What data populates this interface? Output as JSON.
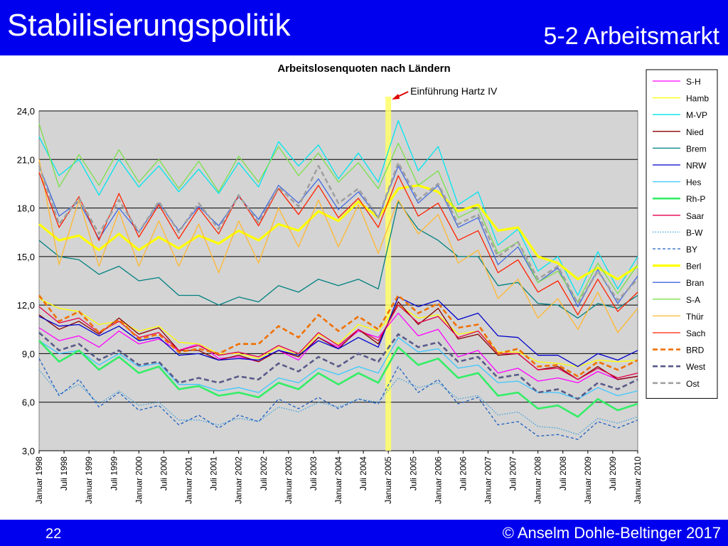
{
  "slide": {
    "title": "Stabilisierungspolitik",
    "section": "5-2 Arbeitsmarkt",
    "page_number": "22",
    "copyright": "© Anselm Dohle-Beltinger 2017",
    "header_color": "#0000ee"
  },
  "chart_data": {
    "type": "line",
    "title": "Arbeitslosenquoten nach Ländern",
    "annotation": "Einführung Hartz IV",
    "annotation_x": "Januar 2005",
    "ylim": [
      3,
      24
    ],
    "yticks": [
      "24,0",
      "21,0",
      "18,0",
      "15,0",
      "12,0",
      "9,0",
      "6,0",
      "3,0"
    ],
    "xticks": [
      "Januar 1998",
      "Juli 1998",
      "Januar 1999",
      "Juli 1999",
      "Januar 2000",
      "Juli 2000",
      "Januar 2001",
      "Juli 2001",
      "Januar 2002",
      "Juli 2002",
      "Januar 2003",
      "Juli 2003",
      "Januar 2004",
      "Juli 2004",
      "Januar 2005",
      "Juli 2005",
      "Januar 2006",
      "Juli 2006",
      "Januar 2007",
      "Juli 2007",
      "Januar 2008",
      "Juli 2008",
      "Januar 2009",
      "Juli 2009",
      "Januar 2010"
    ],
    "grid": true,
    "legend_position": "right",
    "background_color": "#d4d4d4",
    "series": [
      {
        "name": "S-H",
        "color": "#ff00ff",
        "style": "solid",
        "width": 1.3,
        "values": [
          10.6,
          9.8,
          10.1,
          9.4,
          10.4,
          9.6,
          9.9,
          9.2,
          9.6,
          8.7,
          8.8,
          8.5,
          9.2,
          8.6,
          10.0,
          9.4,
          10.4,
          10.0,
          11.5,
          10.1,
          10.5,
          8.8,
          9.2,
          7.8,
          8.1,
          7.3,
          7.5,
          7.2,
          7.9,
          7.4,
          7.6
        ]
      },
      {
        "name": "Hamb",
        "color": "#ffff00",
        "style": "solid",
        "width": 1.3,
        "values": [
          12.4,
          11.8,
          11.6,
          10.8,
          11.0,
          10.4,
          10.7,
          9.7,
          9.6,
          9.0,
          9.0,
          8.7,
          9.4,
          8.9,
          10.2,
          9.6,
          10.8,
          10.4,
          12.0,
          11.2,
          11.4,
          10.2,
          10.4,
          9.1,
          9.1,
          8.5,
          8.4,
          8.2,
          8.6,
          8.5,
          8.6
        ]
      },
      {
        "name": "M-VP",
        "color": "#00e5ee",
        "style": "solid",
        "width": 1.3,
        "values": [
          22.4,
          20.0,
          21.0,
          18.8,
          21.0,
          19.3,
          20.6,
          19.0,
          20.4,
          18.9,
          20.8,
          19.3,
          22.1,
          20.6,
          21.9,
          19.8,
          21.4,
          19.6,
          23.4,
          20.3,
          21.8,
          18.2,
          19.0,
          15.7,
          16.7,
          14.1,
          15.0,
          12.6,
          15.3,
          13.0,
          15.0
        ]
      },
      {
        "name": "Nied",
        "color": "#8b0000",
        "style": "solid",
        "width": 1.3,
        "values": [
          11.4,
          10.5,
          11.0,
          10.2,
          11.2,
          10.2,
          10.6,
          9.2,
          9.2,
          8.6,
          8.9,
          8.5,
          9.2,
          8.8,
          10.0,
          9.3,
          10.5,
          9.6,
          12.2,
          10.8,
          11.8,
          9.9,
          10.2,
          8.9,
          9.0,
          8.0,
          8.2,
          7.4,
          8.2,
          7.4,
          7.6
        ]
      },
      {
        "name": "Brem",
        "color": "#008080",
        "style": "solid",
        "width": 1.3,
        "values": [
          16.0,
          15.0,
          14.8,
          13.9,
          14.4,
          13.5,
          13.7,
          12.6,
          12.6,
          12.0,
          12.5,
          12.2,
          13.2,
          12.8,
          13.6,
          13.2,
          13.6,
          13.0,
          18.4,
          16.7,
          16.0,
          15.0,
          15.0,
          13.2,
          13.4,
          12.1,
          12.0,
          11.2,
          12.1,
          11.8,
          12.6
        ]
      },
      {
        "name": "NRW",
        "color": "#0000cd",
        "style": "solid",
        "width": 1.3,
        "values": [
          11.3,
          10.7,
          10.8,
          10.1,
          10.7,
          9.8,
          10.0,
          8.9,
          9.0,
          8.6,
          8.7,
          8.6,
          9.2,
          8.9,
          9.8,
          9.3,
          10.0,
          9.4,
          12.5,
          11.9,
          12.3,
          11.1,
          11.5,
          10.1,
          10.0,
          8.9,
          8.9,
          8.2,
          9.0,
          8.6,
          9.2
        ]
      },
      {
        "name": "Hes",
        "color": "#3cc8ff",
        "style": "solid",
        "width": 1.3,
        "values": [
          9.8,
          9.0,
          9.2,
          8.3,
          9.0,
          8.2,
          8.4,
          7.1,
          7.1,
          6.7,
          6.9,
          6.6,
          7.5,
          7.2,
          8.1,
          7.7,
          8.2,
          7.8,
          10.0,
          9.1,
          9.3,
          8.1,
          8.3,
          7.2,
          7.3,
          6.6,
          6.6,
          6.2,
          6.9,
          6.4,
          6.7
        ]
      },
      {
        "name": "Rh-P",
        "color": "#33ee66",
        "style": "solid",
        "width": 2.6,
        "values": [
          9.8,
          8.5,
          9.2,
          8.0,
          8.8,
          7.8,
          8.2,
          6.8,
          7.0,
          6.4,
          6.6,
          6.3,
          7.2,
          6.8,
          7.8,
          7.1,
          7.8,
          7.2,
          9.4,
          8.3,
          8.7,
          7.5,
          7.8,
          6.4,
          6.6,
          5.6,
          5.8,
          5.1,
          6.2,
          5.5,
          5.9
        ]
      },
      {
        "name": "Saar",
        "color": "#e4004e",
        "style": "solid",
        "width": 1.3,
        "values": [
          11.9,
          10.9,
          11.2,
          10.3,
          11.0,
          10.0,
          10.3,
          9.2,
          9.5,
          8.9,
          9.1,
          8.8,
          9.5,
          9.0,
          10.3,
          9.5,
          10.5,
          9.8,
          12.0,
          10.9,
          11.3,
          10.0,
          10.4,
          9.0,
          9.0,
          8.0,
          8.1,
          7.4,
          8.1,
          7.5,
          7.8
        ]
      },
      {
        "name": "B-W",
        "color": "#3ca0dc",
        "style": "dotted",
        "width": 1.3,
        "values": [
          8.0,
          6.5,
          7.1,
          5.9,
          6.7,
          5.8,
          6.0,
          4.9,
          4.9,
          4.6,
          5.0,
          4.8,
          5.7,
          5.4,
          6.0,
          5.7,
          6.2,
          6.0,
          7.5,
          6.9,
          7.2,
          6.2,
          6.4,
          5.2,
          5.4,
          4.5,
          4.4,
          4.0,
          5.0,
          4.7,
          5.1
        ]
      },
      {
        "name": "BY",
        "color": "#1f5fbf",
        "style": "dashed",
        "width": 1.3,
        "values": [
          8.7,
          6.4,
          7.4,
          5.7,
          6.6,
          5.5,
          5.8,
          4.6,
          5.2,
          4.4,
          5.2,
          4.8,
          6.2,
          5.6,
          6.3,
          5.6,
          6.2,
          5.9,
          8.2,
          6.6,
          7.4,
          5.9,
          6.3,
          4.6,
          4.8,
          3.9,
          4.0,
          3.7,
          4.8,
          4.4,
          4.9
        ]
      },
      {
        "name": "Berl",
        "color": "#ffff00",
        "style": "solid",
        "width": 3.2,
        "values": [
          17.0,
          16.0,
          16.3,
          15.4,
          16.4,
          15.4,
          16.2,
          15.5,
          16.3,
          15.8,
          16.6,
          16.0,
          17.0,
          16.6,
          17.8,
          17.2,
          18.4,
          17.4,
          19.2,
          19.4,
          19.0,
          17.8,
          18.2,
          16.6,
          16.8,
          15.0,
          14.6,
          13.6,
          14.3,
          13.6,
          14.4
        ]
      },
      {
        "name": "Bran",
        "color": "#4169e1",
        "style": "solid",
        "width": 1.3,
        "values": [
          20.6,
          17.5,
          18.4,
          16.1,
          18.0,
          16.5,
          18.3,
          16.6,
          18.1,
          16.9,
          18.7,
          17.3,
          19.4,
          18.3,
          19.8,
          17.9,
          19.0,
          17.4,
          20.6,
          18.3,
          19.4,
          16.8,
          17.4,
          14.5,
          15.6,
          13.4,
          14.3,
          11.9,
          14.2,
          12.1,
          13.8
        ]
      },
      {
        "name": "S-A",
        "color": "#7ce04a",
        "style": "solid",
        "width": 1.3,
        "values": [
          23.2,
          19.3,
          21.3,
          19.4,
          21.6,
          19.6,
          21.0,
          19.2,
          20.9,
          19.0,
          21.2,
          19.6,
          21.8,
          20.0,
          21.4,
          19.6,
          20.8,
          19.2,
          22.0,
          19.4,
          20.3,
          17.4,
          18.0,
          15.2,
          15.9,
          13.4,
          14.1,
          12.2,
          14.6,
          12.7,
          14.5
        ]
      },
      {
        "name": "Thür",
        "color": "#ffb830",
        "style": "solid",
        "width": 1.3,
        "values": [
          21.0,
          14.5,
          18.5,
          14.4,
          17.8,
          14.4,
          17.2,
          14.4,
          17.0,
          14.0,
          17.2,
          14.6,
          18.0,
          15.6,
          18.5,
          15.6,
          18.2,
          15.2,
          18.5,
          16.4,
          17.6,
          14.6,
          15.4,
          12.4,
          13.6,
          11.2,
          12.4,
          10.5,
          12.8,
          10.3,
          11.8
        ]
      },
      {
        "name": "Sach",
        "color": "#ff2000",
        "style": "solid",
        "width": 1.3,
        "values": [
          20.2,
          16.8,
          18.7,
          16.0,
          18.9,
          16.2,
          18.2,
          16.1,
          18.0,
          16.4,
          18.8,
          16.9,
          19.2,
          17.6,
          19.4,
          17.4,
          18.6,
          16.8,
          20.0,
          17.5,
          18.3,
          16.0,
          16.6,
          14.0,
          14.8,
          12.8,
          13.5,
          11.4,
          13.6,
          11.6,
          12.8
        ]
      },
      {
        "name": "BRD",
        "color": "#f07000",
        "style": "dashed",
        "width": 2.6,
        "values": [
          12.6,
          11.0,
          11.6,
          10.3,
          11.1,
          9.9,
          10.2,
          9.1,
          9.3,
          9.0,
          9.6,
          9.6,
          10.7,
          10.0,
          11.4,
          10.4,
          11.3,
          10.5,
          12.6,
          11.5,
          12.1,
          10.6,
          10.8,
          9.0,
          9.3,
          8.2,
          8.3,
          7.6,
          8.5,
          8.0,
          8.6
        ]
      },
      {
        "name": "West",
        "color": "#5a5a8a",
        "style": "dashed",
        "width": 2.6,
        "values": [
          10.3,
          9.2,
          9.6,
          8.6,
          9.2,
          8.3,
          8.5,
          7.2,
          7.5,
          7.2,
          7.6,
          7.4,
          8.4,
          7.9,
          8.8,
          8.2,
          9.0,
          8.5,
          10.2,
          9.4,
          9.7,
          8.5,
          8.8,
          7.5,
          7.7,
          6.6,
          6.8,
          6.2,
          7.2,
          6.8,
          7.4
        ]
      },
      {
        "name": "Ost",
        "color": "#a0a0a0",
        "style": "dashed",
        "width": 2.6,
        "values": [
          20.6,
          17.0,
          18.6,
          16.4,
          18.5,
          16.5,
          18.4,
          16.5,
          18.3,
          16.7,
          18.8,
          17.1,
          19.3,
          18.1,
          20.6,
          18.3,
          19.2,
          17.4,
          20.8,
          18.5,
          19.5,
          17.0,
          17.6,
          15.0,
          15.9,
          13.6,
          14.4,
          12.1,
          14.1,
          12.3,
          13.6
        ]
      }
    ]
  }
}
